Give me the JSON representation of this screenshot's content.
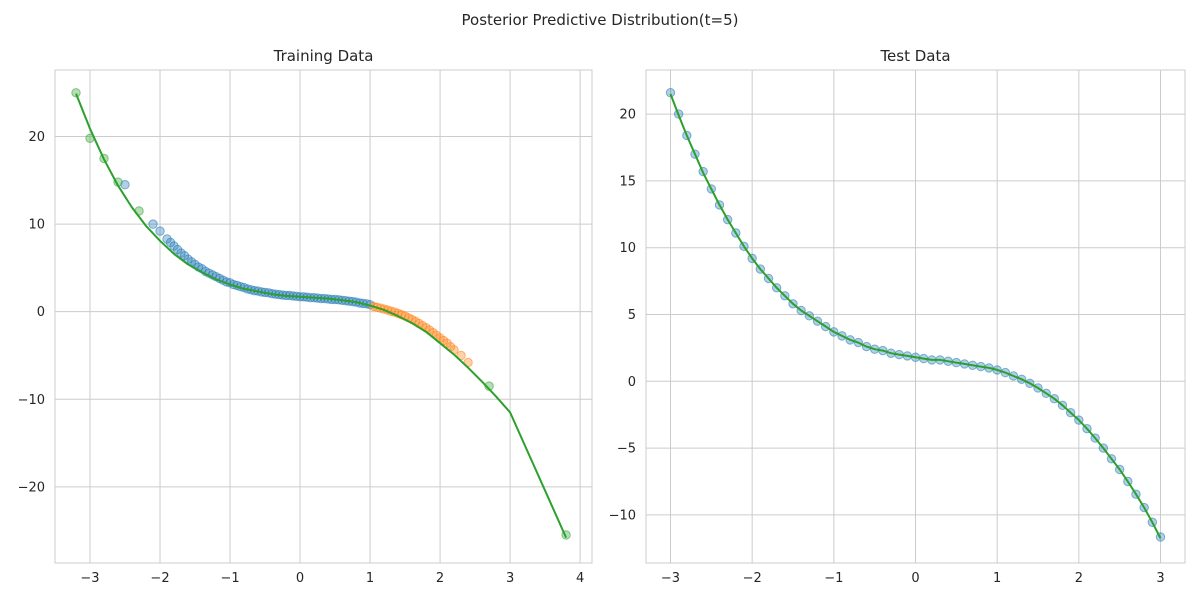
{
  "suptitle": "Posterior Predictive Distribution(t=5)",
  "chart_data": [
    {
      "type": "scatter",
      "title": "Training Data",
      "xlabel": "",
      "ylabel": "",
      "xlim": [
        -3.5,
        4.17
      ],
      "ylim": [
        -28.7,
        27.6
      ],
      "xticks": [
        -3,
        -2,
        -1,
        0,
        1,
        2,
        3,
        4
      ],
      "yticks": [
        -20,
        -10,
        0,
        10,
        20
      ],
      "grid": true,
      "colors": {
        "train": "#1f77b4",
        "extrapolation": "#ff7f0e",
        "mean": "#2ca02c"
      },
      "series": [
        {
          "marker": "circle",
          "color": "#1f77b4",
          "x": [
            -2.5,
            -2.1,
            -2.0,
            -1.9,
            -1.85,
            -1.8,
            -1.75,
            -1.7,
            -1.65,
            -1.6,
            -1.55,
            -1.5,
            -1.45,
            -1.4,
            -1.35,
            -1.3,
            -1.25,
            -1.2,
            -1.15,
            -1.1,
            -1.05,
            -1.0,
            -0.95,
            -0.9,
            -0.85,
            -0.8,
            -0.75,
            -0.7,
            -0.65,
            -0.6,
            -0.55,
            -0.5,
            -0.45,
            -0.4,
            -0.35,
            -0.3,
            -0.25,
            -0.2,
            -0.15,
            -0.1,
            -0.05,
            0.0,
            0.05,
            0.1,
            0.15,
            0.2,
            0.25,
            0.3,
            0.35,
            0.4,
            0.45,
            0.5,
            0.55,
            0.6,
            0.65,
            0.7,
            0.75,
            0.8,
            0.85,
            0.9,
            0.95,
            1.0
          ],
          "y": [
            14.5,
            10.0,
            9.2,
            8.3,
            7.9,
            7.5,
            7.1,
            6.7,
            6.4,
            6.0,
            5.7,
            5.4,
            5.1,
            4.9,
            4.6,
            4.4,
            4.2,
            4.0,
            3.8,
            3.6,
            3.4,
            3.3,
            3.1,
            3.0,
            2.85,
            2.75,
            2.6,
            2.5,
            2.4,
            2.35,
            2.25,
            2.2,
            2.15,
            2.05,
            2.0,
            1.95,
            1.9,
            1.85,
            1.85,
            1.8,
            1.75,
            1.7,
            1.7,
            1.65,
            1.6,
            1.6,
            1.55,
            1.5,
            1.5,
            1.45,
            1.4,
            1.4,
            1.35,
            1.3,
            1.25,
            1.2,
            1.15,
            1.1,
            1.0,
            0.95,
            0.9,
            0.8
          ]
        },
        {
          "marker": "circle",
          "color": "#ff7f0e",
          "x": [
            1.05,
            1.1,
            1.15,
            1.2,
            1.25,
            1.3,
            1.35,
            1.4,
            1.45,
            1.5,
            1.55,
            1.6,
            1.65,
            1.7,
            1.75,
            1.8,
            1.85,
            1.9,
            1.95,
            2.0,
            2.05,
            2.1,
            2.15,
            2.2,
            2.3,
            2.4
          ],
          "y": [
            0.6,
            0.5,
            0.4,
            0.3,
            0.2,
            0.05,
            -0.05,
            -0.2,
            -0.35,
            -0.5,
            -0.7,
            -0.9,
            -1.1,
            -1.35,
            -1.6,
            -1.85,
            -2.1,
            -2.4,
            -2.7,
            -3.0,
            -3.3,
            -3.6,
            -4.0,
            -4.35,
            -5.0,
            -5.8
          ]
        },
        {
          "marker": "circle",
          "color": "#2ca02c",
          "x": [
            -3.2,
            -3.0,
            -2.8,
            -2.6,
            -2.3,
            2.7,
            3.8
          ],
          "y": [
            25.0,
            19.8,
            17.5,
            14.8,
            11.5,
            -8.5,
            -25.5
          ]
        },
        {
          "name": "",
          "marker": "line",
          "color": "#2ca02c",
          "x": [
            -3.2,
            -3.0,
            -2.8,
            -2.6,
            -2.4,
            -2.2,
            -2.0,
            -1.8,
            -1.6,
            -1.4,
            -1.2,
            -1.0,
            -0.8,
            -0.6,
            -0.4,
            -0.2,
            0.0,
            0.2,
            0.4,
            0.6,
            0.8,
            1.0,
            1.2,
            1.4,
            1.6,
            1.8,
            2.0,
            2.2,
            2.4,
            2.6,
            2.8,
            3.0,
            3.8
          ],
          "y": [
            24.9,
            20.9,
            17.4,
            14.4,
            11.9,
            9.8,
            8.1,
            6.6,
            5.4,
            4.5,
            3.7,
            3.1,
            2.6,
            2.3,
            2.0,
            1.8,
            1.7,
            1.6,
            1.5,
            1.3,
            1.1,
            0.7,
            0.2,
            -0.5,
            -1.3,
            -2.3,
            -3.6,
            -4.9,
            -6.4,
            -8.0,
            -9.7,
            -11.5,
            -25.8
          ]
        }
      ]
    },
    {
      "type": "scatter",
      "title": "Test Data",
      "xlabel": "",
      "ylabel": "",
      "xlim": [
        -3.3,
        3.3
      ],
      "ylim": [
        -13.6,
        23.3
      ],
      "xticks": [
        -3,
        -2,
        -1,
        0,
        1,
        2,
        3
      ],
      "yticks": [
        -10,
        -5,
        0,
        5,
        10,
        15,
        20
      ],
      "grid": true,
      "series": [
        {
          "marker": "circle",
          "color": "#1f77b4",
          "x": [
            -3.0,
            -2.9,
            -2.8,
            -2.7,
            -2.6,
            -2.5,
            -2.4,
            -2.3,
            -2.2,
            -2.1,
            -2.0,
            -1.9,
            -1.8,
            -1.7,
            -1.6,
            -1.5,
            -1.4,
            -1.3,
            -1.2,
            -1.1,
            -1.0,
            -0.9,
            -0.8,
            -0.7,
            -0.6,
            -0.5,
            -0.4,
            -0.3,
            -0.2,
            -0.1,
            0.0,
            0.1,
            0.2,
            0.3,
            0.4,
            0.5,
            0.6,
            0.7,
            0.8,
            0.9,
            1.0,
            1.1,
            1.2,
            1.3,
            1.4,
            1.5,
            1.6,
            1.7,
            1.8,
            1.9,
            2.0,
            2.1,
            2.2,
            2.3,
            2.4,
            2.5,
            2.6,
            2.7,
            2.8,
            2.9,
            3.0
          ],
          "y": [
            21.6,
            20.0,
            18.4,
            17.0,
            15.7,
            14.4,
            13.2,
            12.1,
            11.1,
            10.1,
            9.2,
            8.4,
            7.7,
            7.0,
            6.4,
            5.8,
            5.3,
            4.9,
            4.5,
            4.1,
            3.7,
            3.4,
            3.1,
            2.9,
            2.6,
            2.4,
            2.3,
            2.1,
            2.0,
            1.9,
            1.8,
            1.7,
            1.6,
            1.6,
            1.5,
            1.4,
            1.3,
            1.2,
            1.1,
            1.0,
            0.85,
            0.65,
            0.4,
            0.15,
            -0.15,
            -0.5,
            -0.9,
            -1.3,
            -1.8,
            -2.35,
            -2.9,
            -3.55,
            -4.25,
            -5.0,
            -5.8,
            -6.6,
            -7.5,
            -8.45,
            -9.45,
            -10.55,
            -11.65
          ]
        },
        {
          "name": "",
          "marker": "line",
          "color": "#2ca02c",
          "x": [
            -3.0,
            -2.9,
            -2.8,
            -2.7,
            -2.6,
            -2.5,
            -2.4,
            -2.3,
            -2.2,
            -2.1,
            -2.0,
            -1.9,
            -1.8,
            -1.7,
            -1.6,
            -1.5,
            -1.4,
            -1.3,
            -1.2,
            -1.1,
            -1.0,
            -0.9,
            -0.8,
            -0.7,
            -0.6,
            -0.5,
            -0.4,
            -0.3,
            -0.2,
            -0.1,
            0.0,
            0.1,
            0.2,
            0.3,
            0.4,
            0.5,
            0.6,
            0.7,
            0.8,
            0.9,
            1.0,
            1.1,
            1.2,
            1.3,
            1.4,
            1.5,
            1.6,
            1.7,
            1.8,
            1.9,
            2.0,
            2.1,
            2.2,
            2.3,
            2.4,
            2.5,
            2.6,
            2.7,
            2.8,
            2.9,
            3.0
          ],
          "y": [
            21.5,
            19.9,
            18.4,
            17.0,
            15.6,
            14.4,
            13.2,
            12.1,
            11.1,
            10.1,
            9.2,
            8.4,
            7.7,
            7.0,
            6.4,
            5.8,
            5.3,
            4.9,
            4.5,
            4.1,
            3.7,
            3.4,
            3.1,
            2.9,
            2.6,
            2.4,
            2.3,
            2.1,
            2.0,
            1.9,
            1.8,
            1.7,
            1.6,
            1.6,
            1.5,
            1.4,
            1.3,
            1.2,
            1.1,
            1.0,
            0.85,
            0.65,
            0.4,
            0.15,
            -0.15,
            -0.5,
            -0.9,
            -1.3,
            -1.8,
            -2.35,
            -2.9,
            -3.55,
            -4.25,
            -5.0,
            -5.8,
            -6.6,
            -7.5,
            -8.45,
            -9.45,
            -10.55,
            -11.75
          ]
        }
      ]
    }
  ]
}
